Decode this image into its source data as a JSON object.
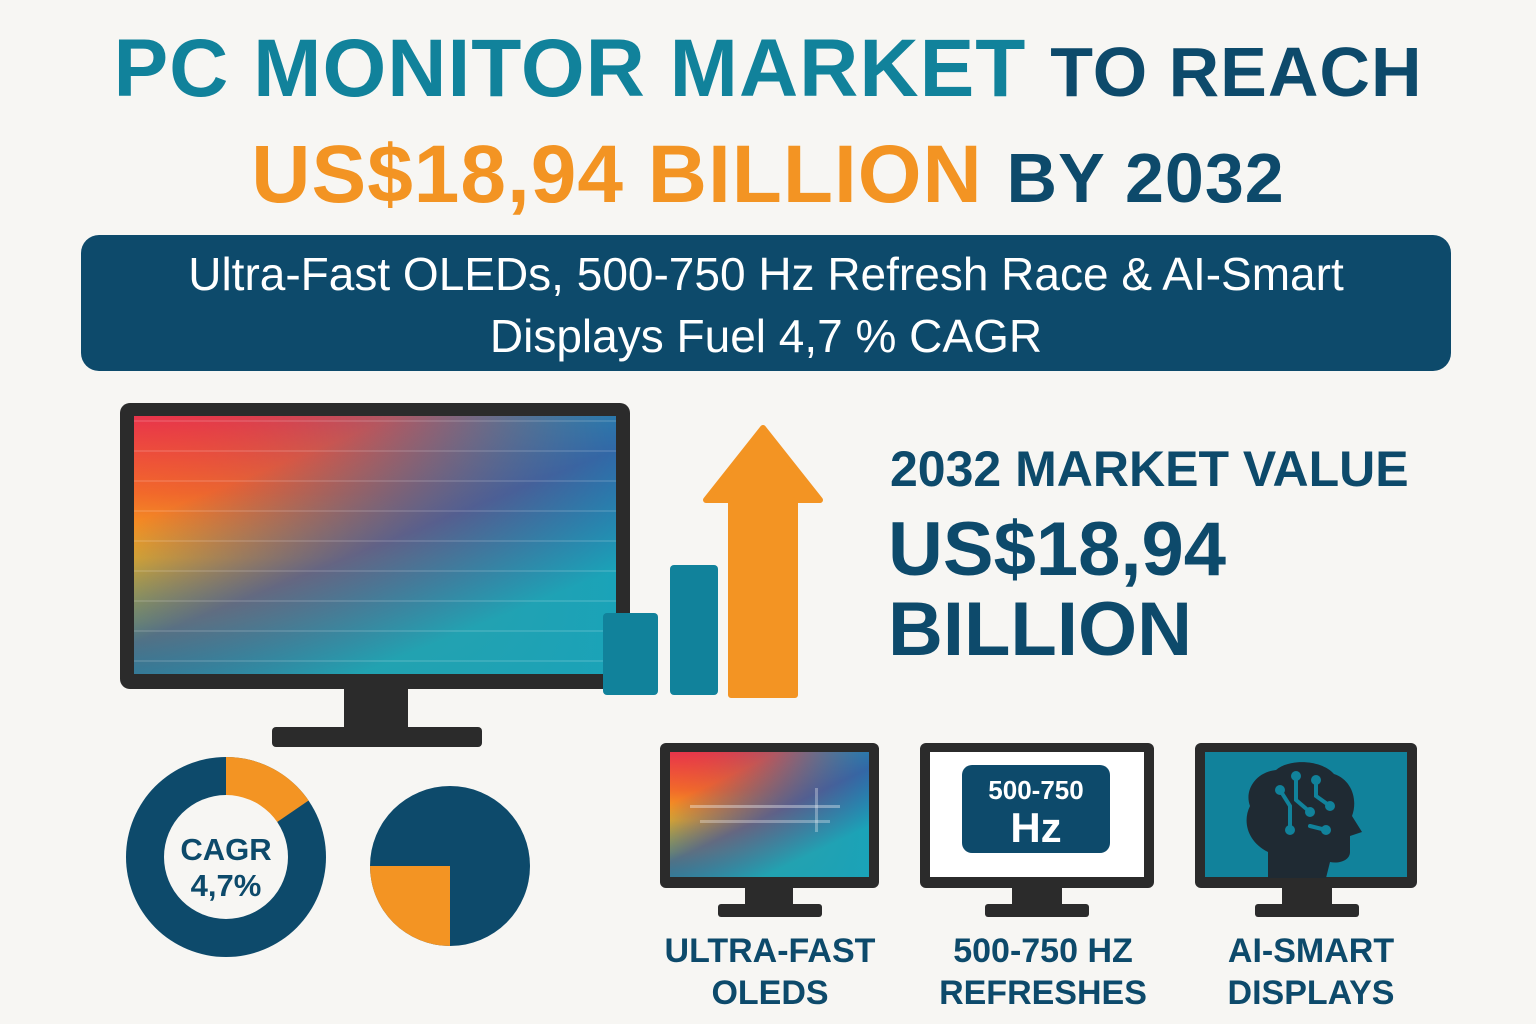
{
  "headline": {
    "line1_a": "PC MONITOR MARKET",
    "line1_b": "TO REACH",
    "line2_a": "US$18,94 BILLION",
    "line2_b": "BY 2032"
  },
  "banner": {
    "line1": "Ultra-Fast OLEDs, 500-750 Hz Refresh Race & AI-Smart",
    "line2": "Displays Fuel 4,7 % CAGR"
  },
  "market_value": {
    "label": "2032 MARKET VALUE",
    "value_line1": "US$18,94",
    "value_line2": "BILLION"
  },
  "cagr": {
    "label": "CAGR",
    "value": "4,7%"
  },
  "features": [
    {
      "line1": "ULTRA-FAST",
      "line2": "OLEDS",
      "icon": "oled-monitor-icon"
    },
    {
      "line1": "500-750 HZ",
      "line2": "REFRESHES",
      "screen_top": "500-750",
      "screen_bottom": "Hz",
      "icon": "refresh-rate-monitor-icon"
    },
    {
      "line1": "AI-SMART",
      "line2": "DISPLAYS",
      "icon": "ai-head-monitor-icon"
    }
  ],
  "colors": {
    "navy": "#0d4a6b",
    "teal": "#11829b",
    "orange": "#f39423",
    "background": "#f7f6f3"
  }
}
